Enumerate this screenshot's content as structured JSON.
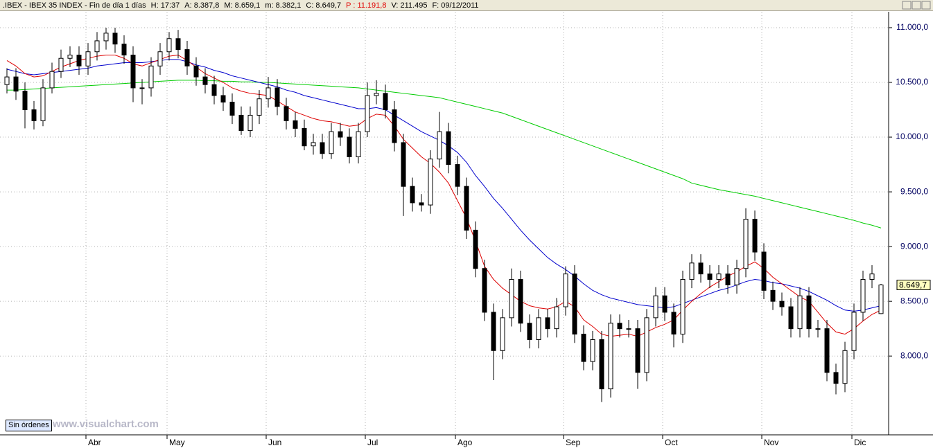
{
  "chart_data": {
    "type": "candlestick",
    "title": ".IBEX - IBEX 35 INDEX - Fin de día 1 días",
    "header_items": [
      {
        "text": "H: 17:37",
        "color": "#000000"
      },
      {
        "text": "A: 8.387,8",
        "color": "#000000"
      },
      {
        "text": "M: 8.659,1",
        "color": "#000000"
      },
      {
        "text": "m: 8.382,1",
        "color": "#000000"
      },
      {
        "text": "C: 8.649,7",
        "color": "#000000"
      },
      {
        "text": "P : 11.191,8",
        "color": "#e00000"
      },
      {
        "text": "V: 211.495",
        "color": "#000000"
      },
      {
        "text": "F: 09/12/2011",
        "color": "#000000"
      }
    ],
    "categories": [
      null,
      null,
      null,
      null,
      null,
      null,
      null,
      null,
      null,
      "Abr",
      null,
      null,
      null,
      null,
      null,
      null,
      null,
      null,
      "May",
      null,
      null,
      null,
      null,
      null,
      null,
      null,
      null,
      null,
      null,
      "Jun",
      null,
      null,
      null,
      null,
      null,
      null,
      null,
      null,
      null,
      null,
      "Jul",
      null,
      null,
      null,
      null,
      null,
      null,
      null,
      null,
      null,
      "Ago",
      null,
      null,
      null,
      null,
      null,
      null,
      null,
      null,
      null,
      null,
      null,
      "Sep",
      null,
      null,
      null,
      null,
      null,
      null,
      null,
      null,
      null,
      null,
      "Oct",
      null,
      null,
      null,
      null,
      null,
      null,
      null,
      null,
      null,
      null,
      "Nov",
      null,
      null,
      null,
      null,
      null,
      null,
      null,
      null,
      null,
      "Dic",
      null,
      null,
      null
    ],
    "open": [
      10480,
      10550,
      10420,
      10250,
      10150,
      10450,
      10600,
      10720,
      10750,
      10650,
      10780,
      10880,
      10950,
      10850,
      10750,
      10450,
      10450,
      10650,
      10780,
      10900,
      10800,
      10650,
      10550,
      10480,
      10380,
      10320,
      10200,
      10060,
      10200,
      10350,
      10450,
      10280,
      10150,
      10080,
      9920,
      9950,
      9850,
      10050,
      10000,
      9820,
      10050,
      10380,
      10400,
      10250,
      9950,
      9550,
      9400,
      9380,
      9800,
      10050,
      9750,
      9550,
      9150,
      8800,
      8400,
      8050,
      8350,
      8700,
      8300,
      8150,
      8350,
      8250,
      8450,
      8750,
      8200,
      7950,
      8150,
      7700,
      8300,
      8250,
      8250,
      7850,
      8350,
      8550,
      8400,
      8200,
      8700,
      8850,
      8750,
      8700,
      8750,
      8650,
      8800,
      9250,
      8950,
      8600,
      8500,
      8450,
      8250,
      8550,
      8250,
      8250,
      7850,
      7750,
      8050,
      8400,
      8700,
      8387.8
    ],
    "high": [
      10630,
      10630,
      10500,
      10330,
      10530,
      10680,
      10800,
      10830,
      10830,
      10860,
      10960,
      11000,
      11000,
      10930,
      10830,
      10530,
      10730,
      10860,
      10960,
      10980,
      10880,
      10730,
      10630,
      10560,
      10460,
      10400,
      10280,
      10280,
      10430,
      10550,
      10530,
      10360,
      10230,
      10160,
      10030,
      10030,
      10130,
      10130,
      10080,
      10130,
      10500,
      10520,
      10480,
      10330,
      10030,
      9630,
      9480,
      9880,
      10230,
      10130,
      9830,
      9630,
      9230,
      8880,
      8480,
      8430,
      8800,
      8780,
      8380,
      8430,
      8430,
      8530,
      8820,
      8830,
      8280,
      8230,
      8230,
      8380,
      8380,
      8330,
      8330,
      8430,
      8630,
      8630,
      8480,
      8780,
      8930,
      8930,
      8830,
      8830,
      8830,
      8880,
      9350,
      9330,
      9030,
      8680,
      8580,
      8530,
      8630,
      8630,
      8330,
      8330,
      7930,
      8130,
      8480,
      8780,
      8830,
      8659.1
    ],
    "low": [
      10400,
      10340,
      10080,
      10070,
      10100,
      10400,
      10540,
      10640,
      10570,
      10570,
      10700,
      10800,
      10770,
      10670,
      10320,
      10300,
      10370,
      10570,
      10700,
      10720,
      10570,
      10470,
      10400,
      10300,
      10240,
      10120,
      10020,
      10000,
      10120,
      10270,
      10200,
      10070,
      10000,
      9880,
      9840,
      9800,
      9800,
      9920,
      9760,
      9760,
      10000,
      10300,
      10170,
      9870,
      9280,
      9320,
      9320,
      9300,
      9720,
      9670,
      9470,
      9070,
      8720,
      8320,
      7780,
      7970,
      8270,
      8220,
      8070,
      8070,
      8170,
      8170,
      8370,
      8120,
      7870,
      7870,
      7580,
      7620,
      8170,
      8170,
      7700,
      7770,
      8270,
      8320,
      8080,
      8120,
      8620,
      8670,
      8620,
      8620,
      8570,
      8570,
      8720,
      8870,
      8520,
      8420,
      8370,
      8170,
      8170,
      8170,
      8170,
      7770,
      7650,
      7670,
      7970,
      8320,
      8620,
      8382.1
    ],
    "close": [
      10550,
      10420,
      10250,
      10150,
      10450,
      10600,
      10720,
      10750,
      10650,
      10780,
      10880,
      10950,
      10850,
      10750,
      10450,
      10450,
      10650,
      10780,
      10900,
      10800,
      10650,
      10550,
      10480,
      10380,
      10320,
      10200,
      10060,
      10200,
      10350,
      10450,
      10280,
      10150,
      10080,
      9920,
      9950,
      9850,
      10050,
      10000,
      9820,
      10050,
      10380,
      10400,
      10250,
      9950,
      9550,
      9400,
      9380,
      9800,
      10050,
      9750,
      9550,
      9150,
      8800,
      8400,
      8050,
      8350,
      8700,
      8300,
      8150,
      8350,
      8250,
      8450,
      8750,
      8200,
      7950,
      8150,
      7700,
      8300,
      8250,
      8250,
      7850,
      8350,
      8550,
      8400,
      8200,
      8700,
      8850,
      8750,
      8700,
      8750,
      8650,
      8800,
      9250,
      8950,
      8600,
      8500,
      8450,
      8250,
      8550,
      8250,
      8250,
      7850,
      7750,
      8050,
      8400,
      8700,
      8750,
      8649.7
    ],
    "last_value_label": "8.649,7",
    "series": [
      {
        "color": "#00cc00",
        "values": [
          10430,
          10430,
          10435,
          10440,
          10445,
          10450,
          10455,
          10460,
          10465,
          10470,
          10475,
          10480,
          10485,
          10490,
          10495,
          10500,
          10505,
          10510,
          10515,
          10520,
          10520,
          10520,
          10515,
          10515,
          10510,
          10510,
          10505,
          10505,
          10500,
          10500,
          10495,
          10490,
          10485,
          10480,
          10475,
          10470,
          10465,
          10460,
          10455,
          10450,
          10440,
          10430,
          10420,
          10410,
          10400,
          10390,
          10380,
          10370,
          10360,
          10340,
          10320,
          10300,
          10280,
          10260,
          10240,
          10220,
          10190,
          10160,
          10130,
          10100,
          10070,
          10040,
          10010,
          9980,
          9950,
          9920,
          9890,
          9860,
          9830,
          9800,
          9770,
          9740,
          9710,
          9680,
          9650,
          9620,
          9580,
          9560,
          9540,
          9520,
          9505,
          9490,
          9475,
          9460,
          9440,
          9420,
          9400,
          9380,
          9360,
          9340,
          9320,
          9300,
          9280,
          9260,
          9240,
          9215,
          9195,
          9170
        ]
      },
      {
        "color": "#0000cc",
        "values": [
          10620,
          10600,
          10580,
          10570,
          10580,
          10590,
          10600,
          10610,
          10620,
          10630,
          10650,
          10660,
          10670,
          10680,
          10680,
          10680,
          10690,
          10700,
          10710,
          10710,
          10690,
          10660,
          10640,
          10610,
          10590,
          10560,
          10540,
          10520,
          10500,
          10480,
          10460,
          10430,
          10410,
          10380,
          10360,
          10340,
          10320,
          10300,
          10280,
          10260,
          10260,
          10270,
          10250,
          10200,
          10150,
          10100,
          10050,
          10010,
          9970,
          9920,
          9860,
          9770,
          9650,
          9550,
          9440,
          9350,
          9250,
          9150,
          9060,
          8980,
          8900,
          8840,
          8790,
          8730,
          8660,
          8600,
          8560,
          8530,
          8510,
          8490,
          8470,
          8460,
          8450,
          8440,
          8450,
          8480,
          8510,
          8540,
          8570,
          8600,
          8620,
          8650,
          8680,
          8700,
          8690,
          8670,
          8660,
          8640,
          8620,
          8590,
          8550,
          8510,
          8460,
          8420,
          8410,
          8420,
          8440,
          8460
        ]
      },
      {
        "color": "#dd0000",
        "values": [
          10700,
          10650,
          10580,
          10550,
          10560,
          10600,
          10640,
          10670,
          10700,
          10720,
          10740,
          10750,
          10750,
          10720,
          10670,
          10650,
          10680,
          10710,
          10740,
          10750,
          10700,
          10640,
          10580,
          10540,
          10500,
          10450,
          10420,
          10400,
          10390,
          10380,
          10330,
          10280,
          10230,
          10200,
          10170,
          10150,
          10140,
          10120,
          10100,
          10110,
          10170,
          10210,
          10200,
          10100,
          9980,
          9900,
          9820,
          9760,
          9680,
          9580,
          9420,
          9260,
          9050,
          8820,
          8700,
          8620,
          8560,
          8500,
          8460,
          8440,
          8430,
          8450,
          8500,
          8450,
          8330,
          8270,
          8200,
          8180,
          8190,
          8200,
          8180,
          8220,
          8260,
          8290,
          8330,
          8420,
          8500,
          8570,
          8630,
          8680,
          8730,
          8770,
          8820,
          8860,
          8800,
          8720,
          8660,
          8600,
          8540,
          8500,
          8400,
          8300,
          8220,
          8200,
          8250,
          8320,
          8380,
          8420
        ]
      }
    ],
    "ylim": [
      7280,
      11139
    ],
    "yticks": [
      {
        "value": 8000,
        "label": "8.000,0"
      },
      {
        "value": 8500,
        "label": "8.500,0"
      },
      {
        "value": 9000,
        "label": "9.000,0"
      },
      {
        "value": 9500,
        "label": "9.500,0"
      },
      {
        "value": 10000,
        "label": "10.000,0"
      },
      {
        "value": 10500,
        "label": "10.500,0"
      },
      {
        "value": 11000,
        "label": "11.000,0"
      }
    ],
    "grid": true,
    "up_color": "#ffffff",
    "down_color": "#000000",
    "watermark": "www.visualchart.com",
    "status_button": "Sin órdenes"
  }
}
